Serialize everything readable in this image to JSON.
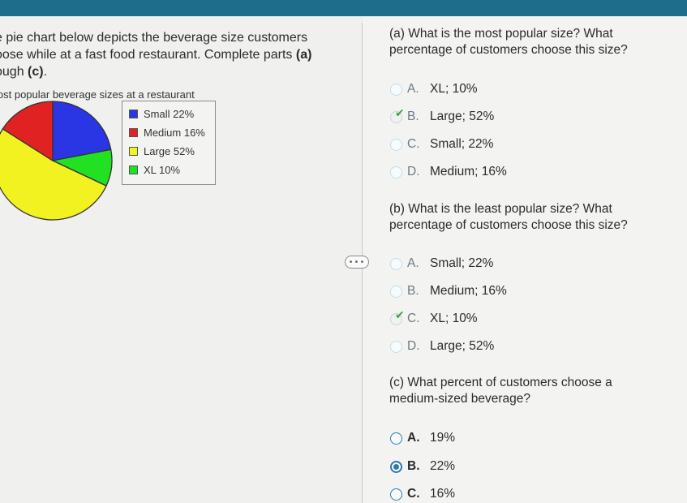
{
  "intro_lines": [
    {
      "text": "e pie chart below depicts the beverage size customers"
    },
    {
      "text": "oose while at a fast food restaurant. Complete parts ",
      "bold1": "(a)"
    },
    {
      "text": "ough ",
      "bold1": "(c)",
      "tail": "."
    }
  ],
  "handle_label": "•••",
  "chart_data": {
    "type": "pie",
    "title": "lost popular beverage sizes at a restaurant",
    "slices": [
      {
        "label": "Small 22%",
        "value": 22,
        "color": "#2a35e3"
      },
      {
        "label": "Medium 16%",
        "value": 16,
        "color": "#e12222"
      },
      {
        "label": "Large 52%",
        "value": 52,
        "color": "#f2f221"
      },
      {
        "label": "XL 10%",
        "value": 10,
        "color": "#22e022"
      }
    ]
  },
  "questions": [
    {
      "text_lines": [
        "(a) What is the most popular size? What",
        "percentage of customers choose this size?"
      ],
      "options": [
        {
          "letter": "A.",
          "text": "XL; 10%",
          "state": "none"
        },
        {
          "letter": "B.",
          "text": "Large; 52%",
          "state": "checked"
        },
        {
          "letter": "C.",
          "text": "Small; 22%",
          "state": "none"
        },
        {
          "letter": "D.",
          "text": "Medium; 16%",
          "state": "none"
        }
      ]
    },
    {
      "text_lines": [
        "(b) What is the least popular size? What",
        "percentage of customers choose this size?"
      ],
      "options": [
        {
          "letter": "A.",
          "text": "Small; 22%",
          "state": "none"
        },
        {
          "letter": "B.",
          "text": "Medium; 16%",
          "state": "none"
        },
        {
          "letter": "C.",
          "text": "XL; 10%",
          "state": "checked"
        },
        {
          "letter": "D.",
          "text": "Large; 52%",
          "state": "none"
        }
      ]
    },
    {
      "text_lines": [
        "(c) What percent of customers choose a",
        "medium-sized beverage?"
      ],
      "options": [
        {
          "letter": "A.",
          "text": "19%",
          "state": "open"
        },
        {
          "letter": "B.",
          "text": "22%",
          "state": "selected"
        },
        {
          "letter": "C.",
          "text": "16%",
          "state": "open"
        }
      ]
    }
  ]
}
